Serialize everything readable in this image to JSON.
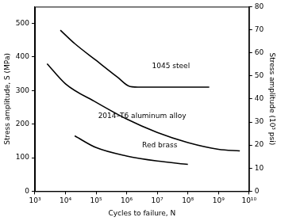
{
  "chart_data": {
    "type": "line",
    "x_label": "Cycles to failure, N",
    "y_label": "Stress amplitude, S (MPa)",
    "y2_label": "Stress amplitude (10³ psi)",
    "log": "x",
    "grid": false,
    "xlim": [
      1000,
      10000000000
    ],
    "xticks": [
      {
        "value": 1000,
        "label": "10³"
      },
      {
        "value": 10000,
        "label": "10⁴"
      },
      {
        "value": 100000,
        "label": "10⁵"
      },
      {
        "value": 1000000,
        "label": "10⁶"
      },
      {
        "value": 10000000,
        "label": "10⁷"
      },
      {
        "value": 100000000,
        "label": "10⁸"
      },
      {
        "value": 1000000000,
        "label": "10⁹"
      },
      {
        "value": 10000000000,
        "label": "10¹⁰"
      }
    ],
    "ylim": [
      0,
      550
    ],
    "yticks": [
      0,
      100,
      200,
      300,
      400,
      500
    ],
    "y2lim": [
      0,
      80
    ],
    "y2ticks": [
      0,
      10,
      20,
      30,
      40,
      50,
      60,
      70,
      80
    ],
    "series": [
      {
        "name": "1045 steel",
        "color": "#000000",
        "x": [
          6800,
          20000,
          100000,
          500000,
          1300000,
          3000000,
          10000000,
          100000000,
          500000000
        ],
        "values": [
          480,
          440,
          390,
          340,
          312,
          310,
          310,
          310,
          310
        ]
      },
      {
        "name": "2014–T6 aluminum alloy",
        "color": "#000000",
        "x": [
          2500,
          10000,
          100000,
          1000000,
          10000000,
          100000000,
          1000000000,
          5000000000
        ],
        "values": [
          380,
          320,
          265,
          215,
          175,
          145,
          125,
          120
        ]
      },
      {
        "name": "Red brass",
        "color": "#000000",
        "x": [
          20000,
          100000,
          1000000,
          10000000,
          100000000
        ],
        "values": [
          165,
          130,
          105,
          90,
          80
        ]
      }
    ],
    "annotations": [
      {
        "text": "1045 steel",
        "x": 28000000,
        "y": 372
      },
      {
        "text": "2014–T6 aluminum alloy",
        "x": 3200000,
        "y": 224
      },
      {
        "text": "Red brass",
        "x": 12000000,
        "y": 137
      }
    ]
  }
}
